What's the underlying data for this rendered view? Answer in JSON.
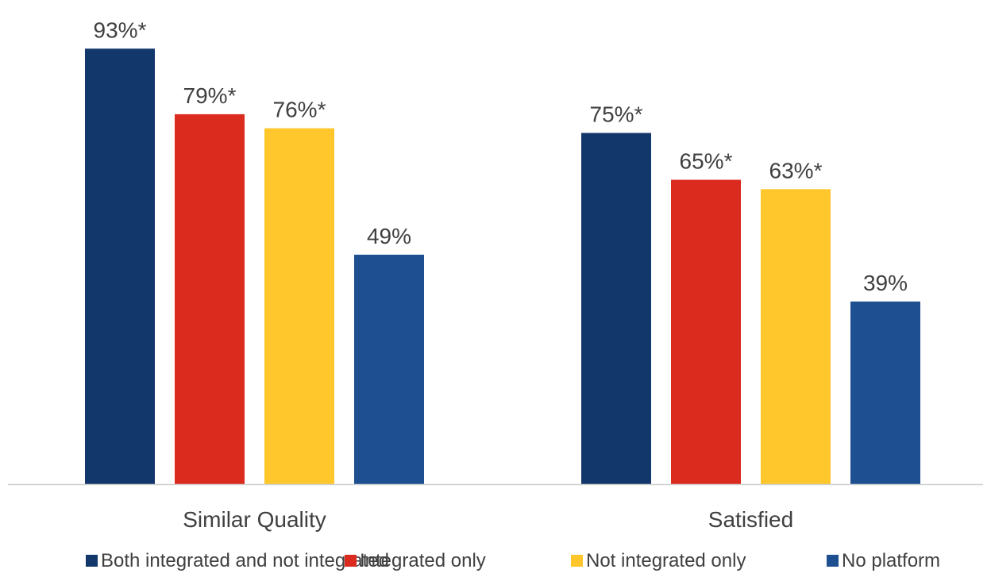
{
  "chart_data": {
    "type": "bar",
    "title": "",
    "xlabel": "",
    "ylabel": "",
    "ylim": [
      0,
      100
    ],
    "grid": false,
    "legend_position": "bottom",
    "categories": [
      "Similar Quality",
      "Satisfied"
    ],
    "series": [
      {
        "name": "Both integrated and not integrated",
        "color": "#12386B",
        "values": [
          93,
          75
        ],
        "labels": [
          "93%*",
          "75%*"
        ]
      },
      {
        "name": "Integrated only",
        "color": "#DB2B1E",
        "values": [
          79,
          65
        ],
        "labels": [
          "79%*",
          "65%*"
        ]
      },
      {
        "name": "Not integrated only",
        "color": "#FFC72C",
        "values": [
          76,
          63
        ],
        "labels": [
          "76%*",
          "63%*"
        ]
      },
      {
        "name": "No platform",
        "color": "#1D4F91",
        "values": [
          49,
          39
        ],
        "labels": [
          "49%",
          "39%"
        ]
      }
    ]
  },
  "colors": {
    "axis": "#D0D0D0",
    "text": "#404040"
  }
}
